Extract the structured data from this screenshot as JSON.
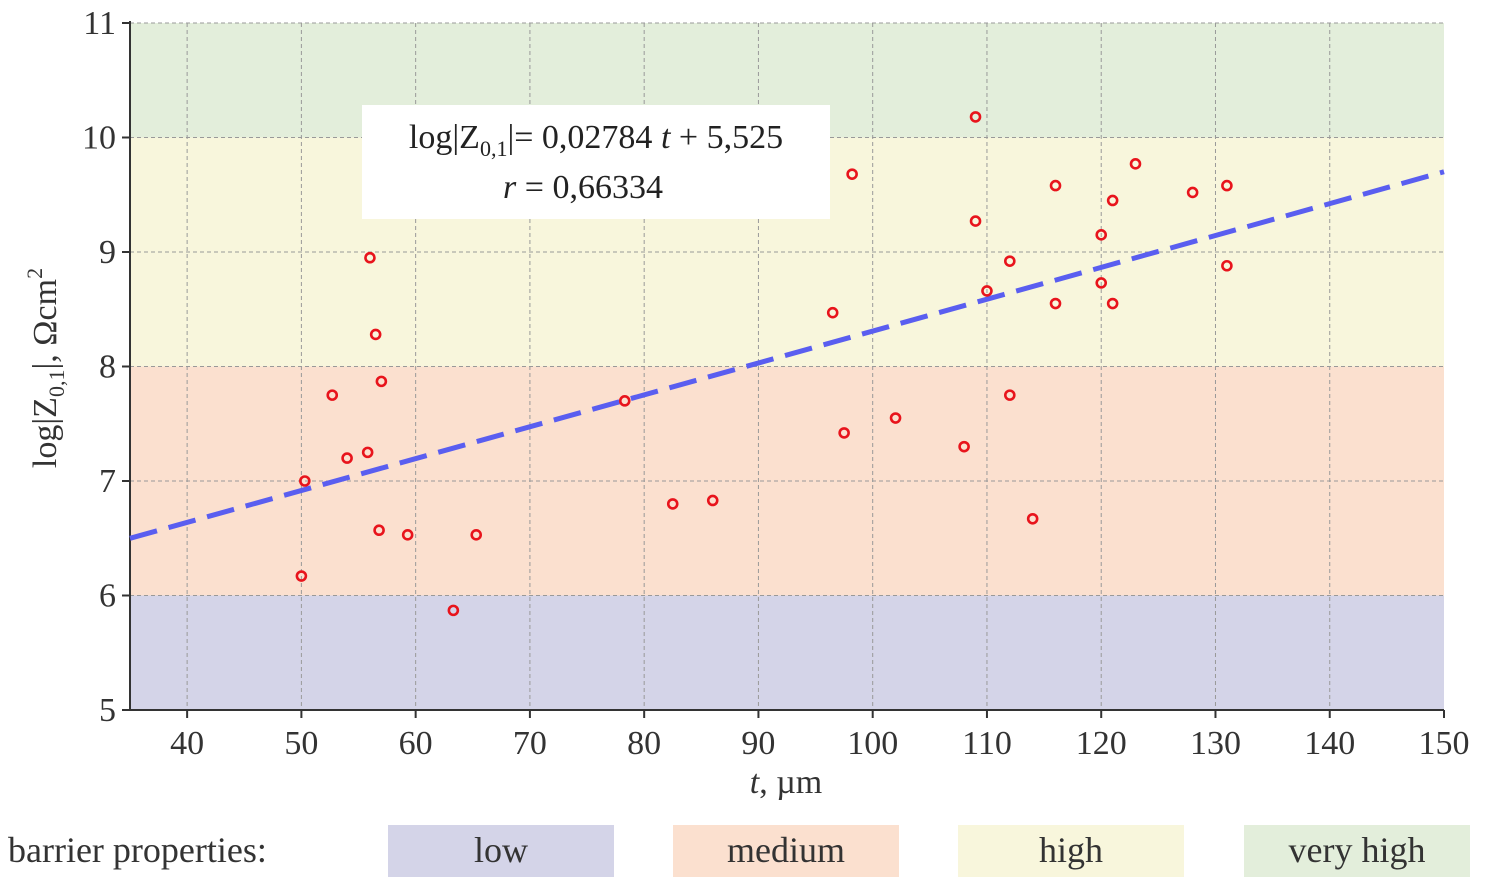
{
  "chart_data": {
    "type": "scatter",
    "title": "",
    "xlabel": "t, µm",
    "xlabel_var": "t",
    "xlabel_unit": ", µm",
    "ylabel": "log|Z0,1|, Ωcm2",
    "ylabel_parts": {
      "pre": "log|Z",
      "sub": "0,1",
      "mid": "|, Ωcm",
      "sup": "2"
    },
    "xlim": [
      35,
      150
    ],
    "ylim": [
      5,
      11
    ],
    "xticks": [
      "40",
      "50",
      "60",
      "70",
      "80",
      "90",
      "100",
      "110",
      "120",
      "130",
      "140",
      "150"
    ],
    "xtick_values": [
      40,
      50,
      60,
      70,
      80,
      90,
      100,
      110,
      120,
      130,
      140,
      150
    ],
    "yticks": [
      "5",
      "6",
      "7",
      "8",
      "9",
      "10",
      "11"
    ],
    "ytick_values": [
      5,
      6,
      7,
      8,
      9,
      10,
      11
    ],
    "grid": true,
    "bands": [
      {
        "name": "low",
        "y0": 5,
        "y1": 6,
        "color": "#d4d4e8"
      },
      {
        "name": "medium",
        "y0": 6,
        "y1": 8,
        "color": "#fbe0cf"
      },
      {
        "name": "high",
        "y0": 8,
        "y1": 10,
        "color": "#f8f6dc"
      },
      {
        "name": "very high",
        "y0": 10,
        "y1": 11,
        "color": "#e3eedb"
      }
    ],
    "points": [
      [
        50,
        6.17
      ],
      [
        50.3,
        7.0
      ],
      [
        52.7,
        7.75
      ],
      [
        54,
        7.2
      ],
      [
        55.8,
        7.25
      ],
      [
        56,
        8.95
      ],
      [
        56.5,
        8.28
      ],
      [
        56.8,
        6.57
      ],
      [
        57,
        7.87
      ],
      [
        59.3,
        6.53
      ],
      [
        63.3,
        5.87
      ],
      [
        65.3,
        6.53
      ],
      [
        78.3,
        7.7
      ],
      [
        82.5,
        6.8
      ],
      [
        86,
        6.83
      ],
      [
        96.5,
        8.47
      ],
      [
        97.5,
        7.42
      ],
      [
        98.2,
        9.68
      ],
      [
        102,
        7.55
      ],
      [
        108,
        7.3
      ],
      [
        109,
        10.18
      ],
      [
        109,
        9.27
      ],
      [
        110,
        8.66
      ],
      [
        112,
        8.92
      ],
      [
        112,
        7.75
      ],
      [
        114,
        6.67
      ],
      [
        116,
        9.58
      ],
      [
        116,
        8.55
      ],
      [
        120,
        9.15
      ],
      [
        120,
        8.73
      ],
      [
        121,
        9.45
      ],
      [
        121,
        8.55
      ],
      [
        123,
        9.77
      ],
      [
        128,
        9.52
      ],
      [
        131,
        9.58
      ],
      [
        131,
        8.88
      ]
    ],
    "fit": {
      "slope": 0.02784,
      "intercept": 5.525,
      "r": 0.66334,
      "x_range": [
        35,
        150
      ]
    },
    "annotation": {
      "line1_pre": "log|Z",
      "line1_sub": "0,1",
      "line1_post": "|= 0,02784 ",
      "line1_var": "t",
      "line1_end": " + 5,525",
      "line2_var": "r",
      "line2_post": " = 0,66334"
    },
    "colors": {
      "points": "#e8141c",
      "fit_line": "#5a5ef0",
      "grid": "#999999",
      "axis": "#333333"
    },
    "legend": {
      "title": "barrier properties:",
      "items": [
        {
          "label": "low",
          "color": "#d4d4e8"
        },
        {
          "label": "medium",
          "color": "#fbe0cf"
        },
        {
          "label": "high",
          "color": "#f8f6dc"
        },
        {
          "label": "very high",
          "color": "#e3eedb"
        }
      ],
      "placement": "bottom"
    }
  }
}
